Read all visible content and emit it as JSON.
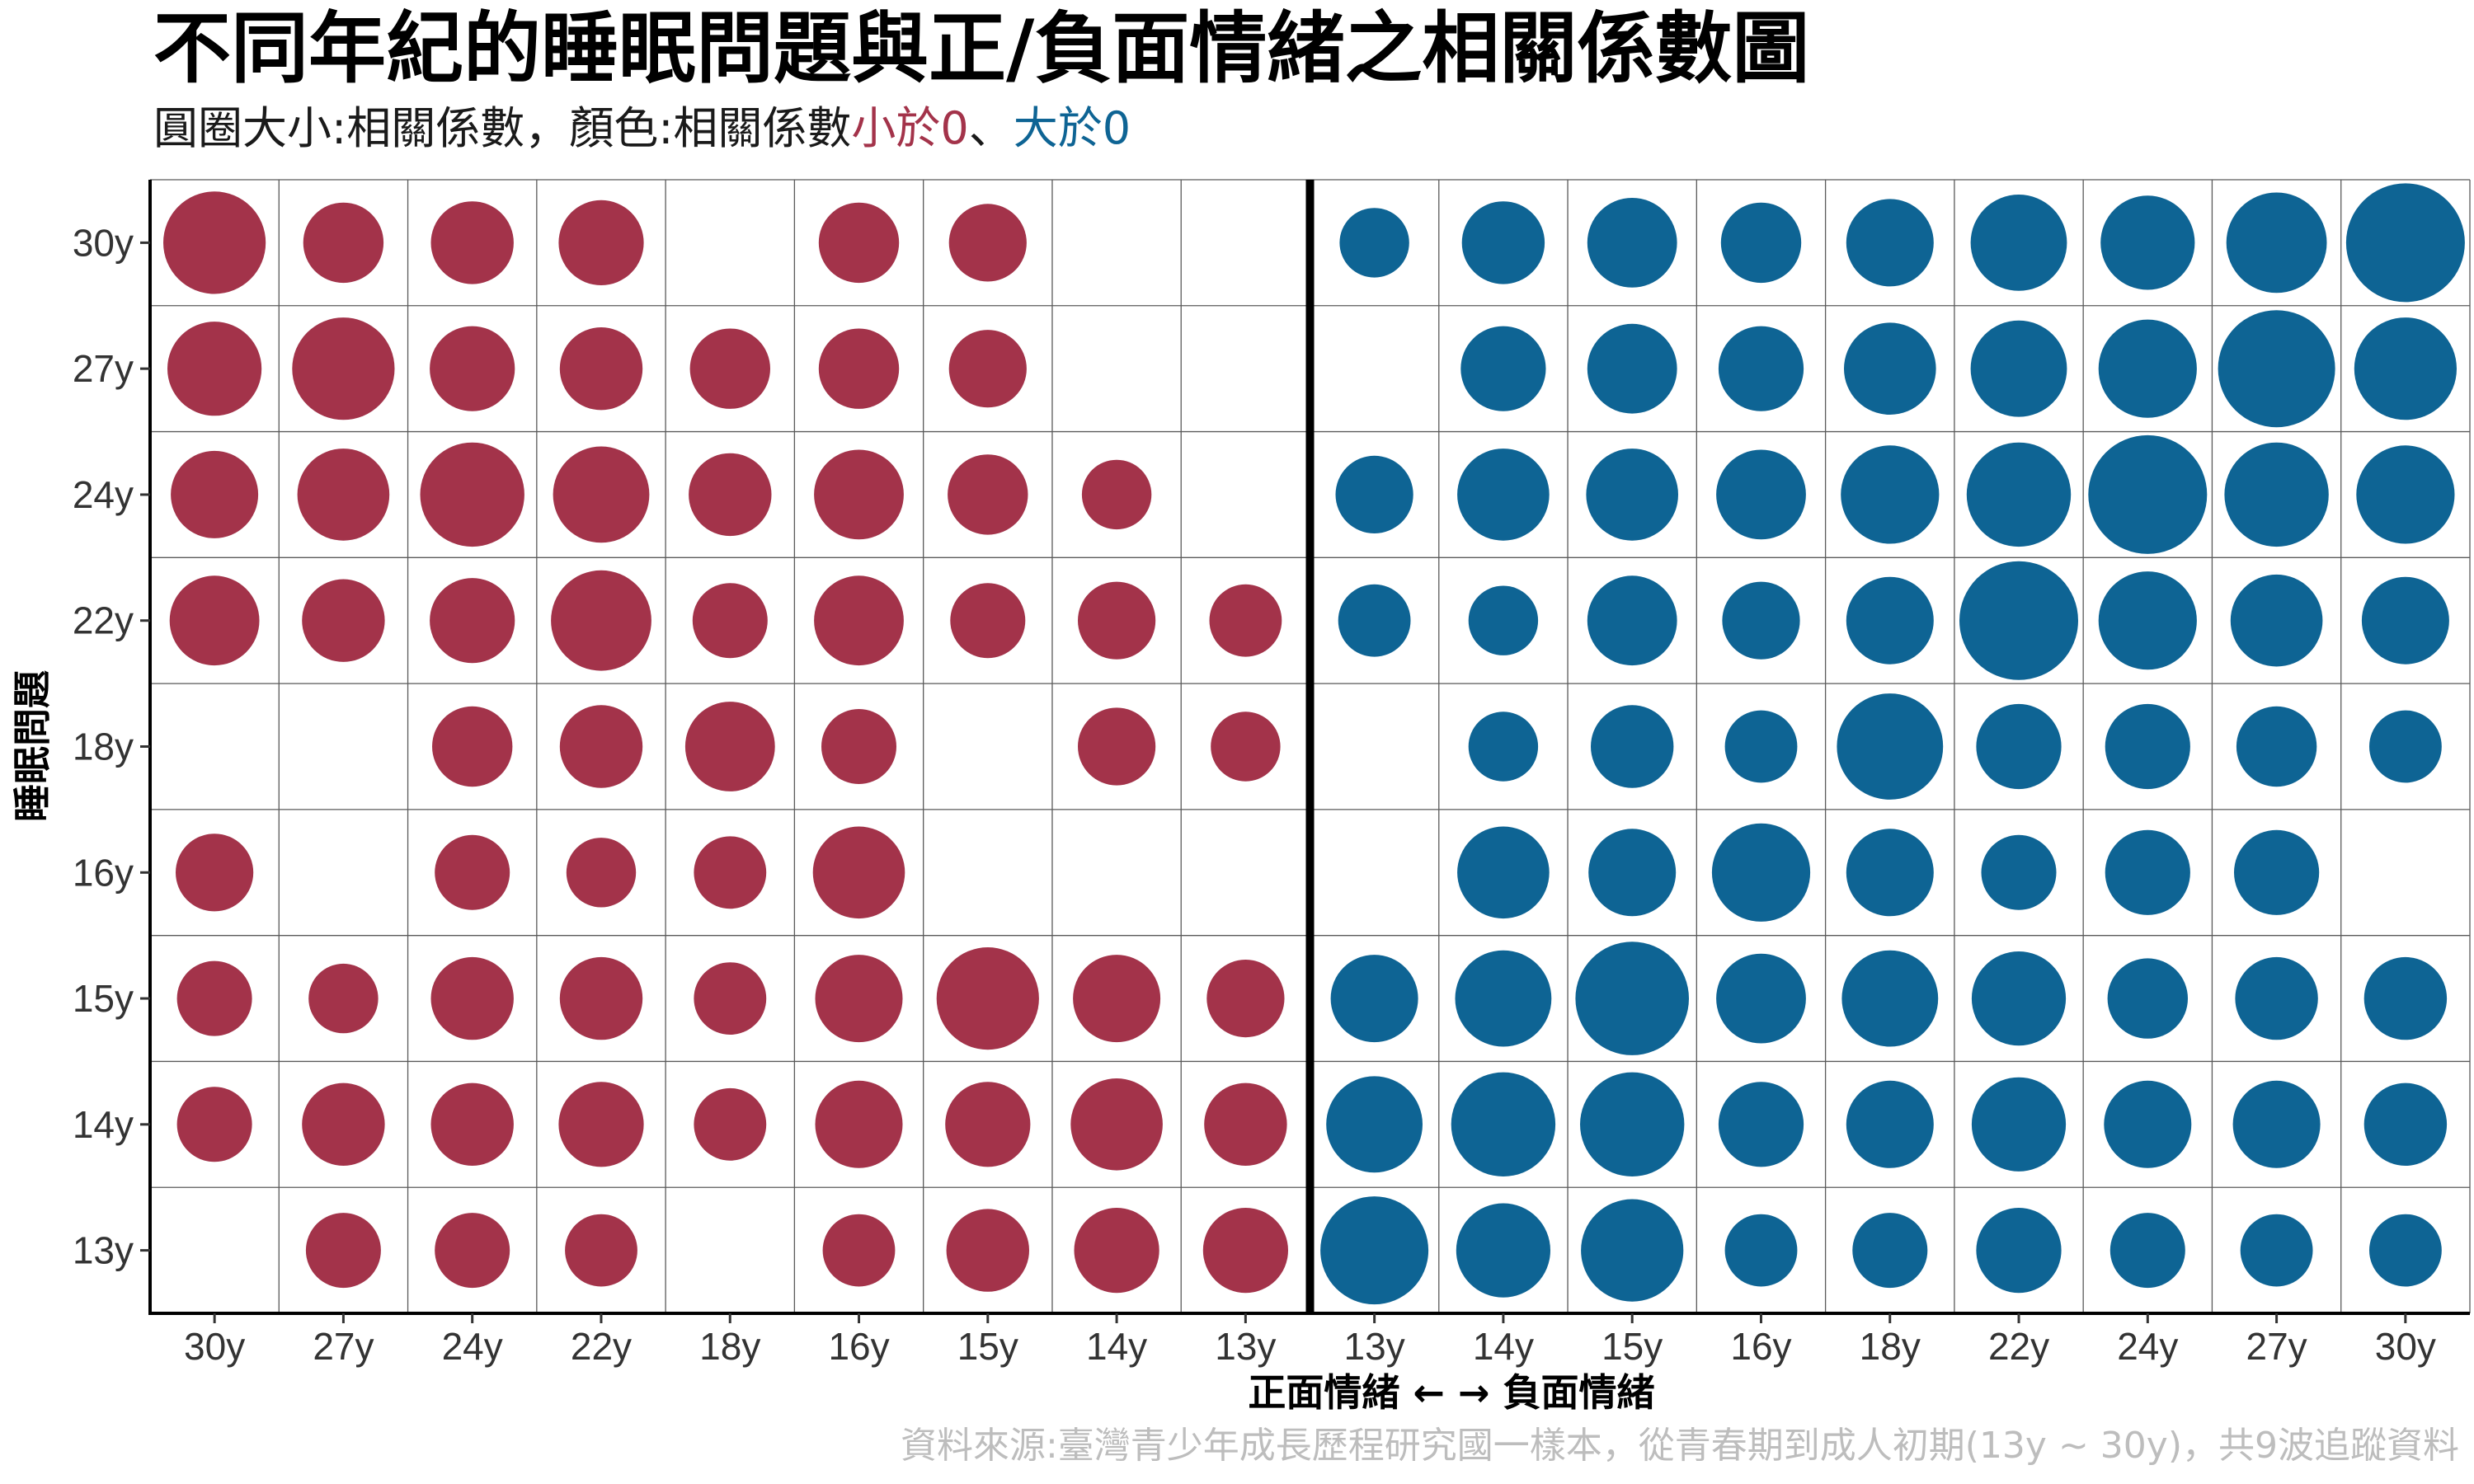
{
  "title": "不同年紀的睡眠問題與正/負面情緒之相關係數圖",
  "subtitle": {
    "prefix": "圓圈大小:相關係數，顏色:相關係數",
    "neg_label": "小於0",
    "sep": "、",
    "pos_label": "大於0"
  },
  "caption": "資料來源:臺灣青少年成長歷程研究國一樣本，從青春期到成人初期(13y ~ 30y)，共9波追蹤資料",
  "colors": {
    "negative": "#A3334A",
    "positive": "#0E6494"
  },
  "chart_data": {
    "type": "scatter",
    "encoding": "bubble grid; circle size = |correlation|, color = sign",
    "xlabel": "正面情緒 ← → 負面情緒",
    "ylabel": "睡眠問題",
    "x_categories": [
      "30y",
      "27y",
      "24y",
      "22y",
      "18y",
      "16y",
      "15y",
      "14y",
      "13y",
      "13y",
      "14y",
      "15y",
      "16y",
      "18y",
      "22y",
      "24y",
      "27y",
      "30y"
    ],
    "y_categories": [
      "30y",
      "27y",
      "24y",
      "22y",
      "18y",
      "16y",
      "15y",
      "14y",
      "13y"
    ],
    "values": [
      [
        -0.26,
        -0.16,
        -0.17,
        -0.18,
        null,
        -0.16,
        -0.15,
        null,
        null,
        0.12,
        0.17,
        0.2,
        0.16,
        0.19,
        0.23,
        0.22,
        0.25,
        0.35
      ],
      [
        -0.22,
        -0.26,
        -0.18,
        -0.17,
        -0.16,
        -0.16,
        -0.15,
        null,
        null,
        null,
        0.18,
        0.2,
        0.18,
        0.21,
        0.23,
        0.24,
        0.34,
        0.26
      ],
      [
        -0.19,
        -0.21,
        -0.27,
        -0.23,
        -0.17,
        -0.2,
        -0.16,
        -0.12,
        null,
        0.15,
        0.21,
        0.21,
        0.2,
        0.24,
        0.27,
        0.35,
        0.27,
        0.24
      ],
      [
        -0.2,
        -0.17,
        -0.18,
        -0.25,
        -0.14,
        -0.2,
        -0.14,
        -0.15,
        -0.13,
        0.13,
        0.12,
        0.2,
        0.15,
        0.19,
        0.35,
        0.24,
        0.21,
        0.19
      ],
      [
        null,
        null,
        -0.16,
        -0.17,
        -0.2,
        -0.14,
        null,
        -0.15,
        -0.12,
        null,
        0.12,
        0.17,
        0.13,
        0.28,
        0.18,
        0.18,
        0.16,
        0.13
      ],
      [
        -0.15,
        null,
        -0.14,
        -0.12,
        -0.13,
        -0.21,
        null,
        null,
        null,
        null,
        0.21,
        0.19,
        0.24,
        0.19,
        0.14,
        0.18,
        0.18,
        null
      ],
      [
        -0.14,
        -0.12,
        -0.17,
        -0.17,
        -0.13,
        -0.19,
        -0.26,
        -0.19,
        -0.15,
        0.19,
        0.23,
        0.32,
        0.2,
        0.23,
        0.22,
        0.16,
        0.17,
        0.17
      ],
      [
        -0.14,
        -0.17,
        -0.17,
        -0.18,
        -0.13,
        -0.19,
        -0.18,
        -0.21,
        -0.17,
        0.23,
        0.27,
        0.27,
        0.18,
        0.19,
        0.22,
        0.19,
        0.19,
        0.17
      ],
      [
        null,
        -0.14,
        -0.14,
        -0.13,
        null,
        -0.13,
        -0.17,
        -0.18,
        -0.18,
        0.29,
        0.22,
        0.26,
        0.13,
        0.14,
        0.18,
        0.14,
        0.13,
        0.13
      ]
    ],
    "divider_after_column": 9,
    "grid": true,
    "legend": "none"
  }
}
